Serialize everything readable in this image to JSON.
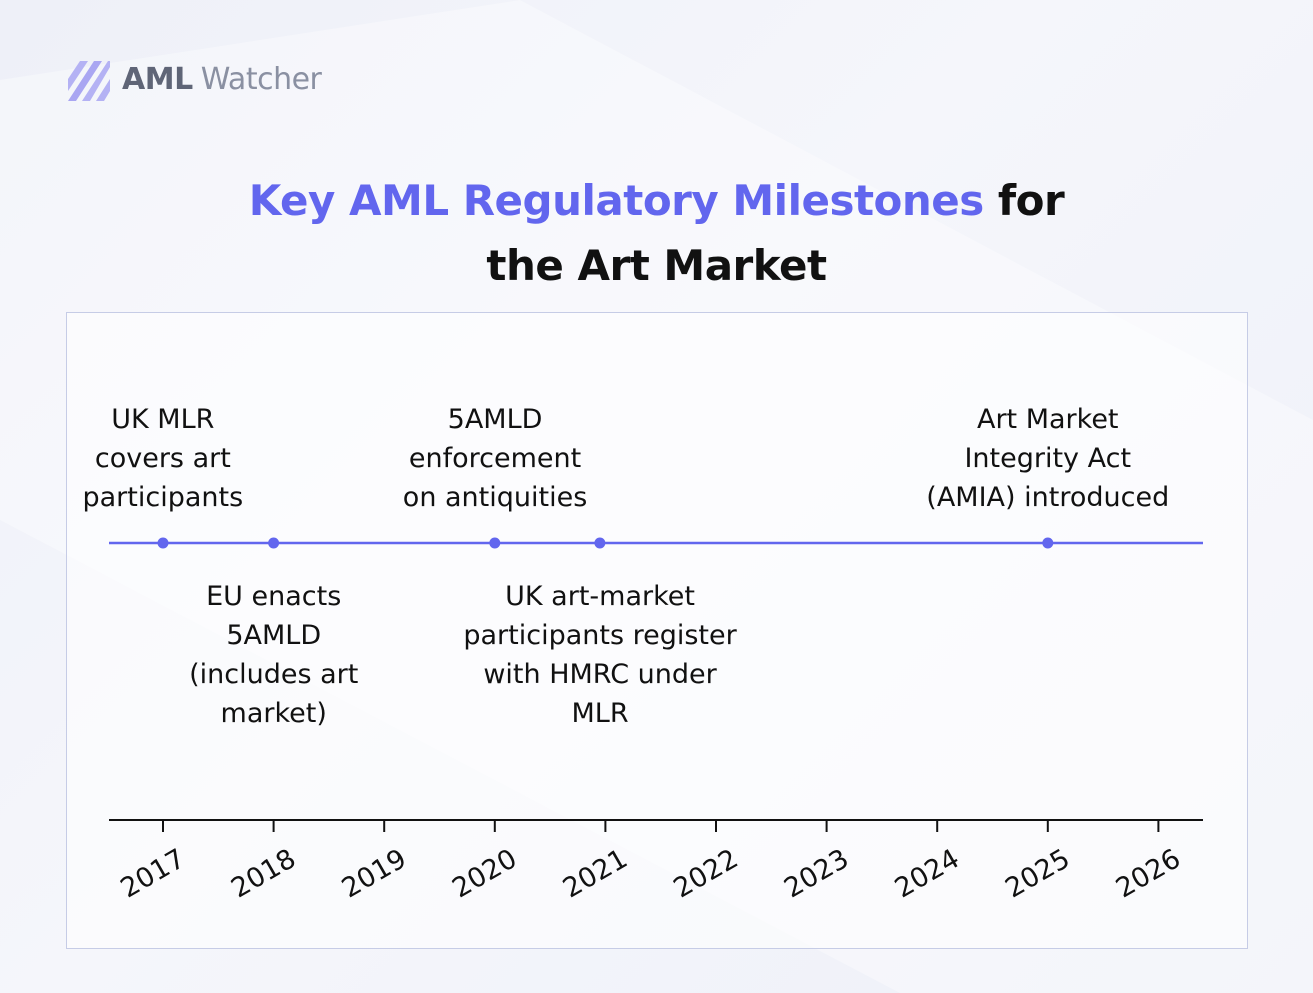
{
  "brand": {
    "aml": "AML",
    "watcher": "Watcher"
  },
  "title": {
    "accent": "Key AML Regulatory Milestones",
    "plain_tail": "for",
    "line2": "the Art Market"
  },
  "colors": {
    "accent": "#6266ee",
    "line": "#6266ee",
    "text": "#111111"
  },
  "chart_data": {
    "type": "timeline",
    "axis": {
      "years": [
        "2017",
        "2018",
        "2019",
        "2020",
        "2021",
        "2022",
        "2023",
        "2024",
        "2025",
        "2026"
      ]
    },
    "events": [
      {
        "date": 2017.0,
        "lines": [
          "UK MLR",
          "covers art",
          "participants"
        ],
        "position": "above"
      },
      {
        "date": 2018.0,
        "lines": [
          "EU enacts",
          "5AMLD",
          "(includes art",
          "market)"
        ],
        "position": "below"
      },
      {
        "date": 2020.0,
        "lines": [
          "5AMLD",
          "enforcement",
          "on antiquities"
        ],
        "position": "above"
      },
      {
        "date": 2020.95,
        "lines": [
          "UK art-market",
          "participants register",
          "with HMRC under",
          "MLR"
        ],
        "position": "below"
      },
      {
        "date": 2025.0,
        "lines": [
          "Art Market",
          "Integrity Act",
          "(AMIA) introduced"
        ],
        "position": "above"
      }
    ]
  }
}
